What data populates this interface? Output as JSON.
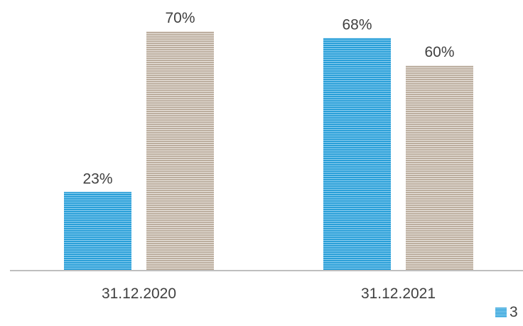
{
  "chart_data": {
    "type": "bar",
    "categories": [
      "31.12.2020",
      "31.12.2021"
    ],
    "series": [
      {
        "values": [
          23,
          68
        ],
        "labels": [
          "23%",
          "68%"
        ],
        "color": "#2a9fd8"
      },
      {
        "values": [
          70,
          60
        ],
        "labels": [
          "70%",
          "60%"
        ],
        "color": "#c8bcad"
      }
    ],
    "ylim": [
      0,
      70
    ],
    "grid": false,
    "legend_position": "bottom-right"
  },
  "legend": {
    "first_text": "3"
  }
}
